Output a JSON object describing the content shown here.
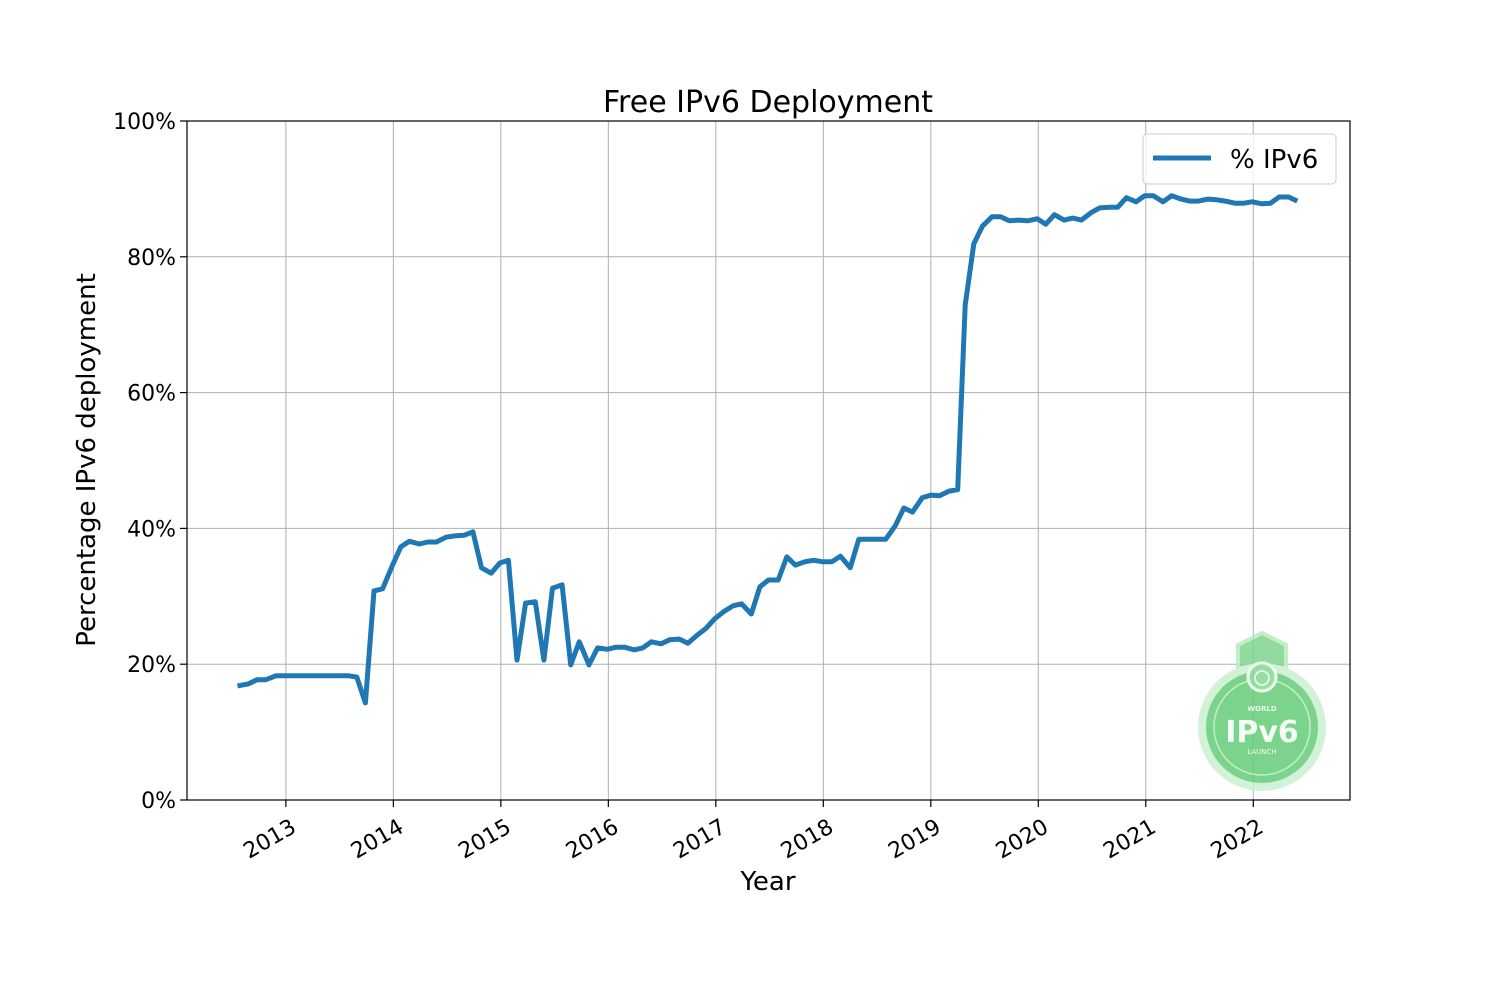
{
  "chart_data": {
    "type": "line",
    "title": "Free IPv6 Deployment",
    "xlabel": "Year",
    "ylabel": "Percentage IPv6 deployment",
    "xlim": [
      2012.08,
      2022.9
    ],
    "ylim": [
      0,
      100
    ],
    "grid": true,
    "legend_position": "top-right",
    "x_ticks": [
      2013,
      2014,
      2015,
      2016,
      2017,
      2018,
      2019,
      2020,
      2021,
      2022
    ],
    "x_tick_labels": [
      "2013",
      "2014",
      "2015",
      "2016",
      "2017",
      "2018",
      "2019",
      "2020",
      "2021",
      "2022"
    ],
    "y_ticks": [
      0,
      20,
      40,
      60,
      80,
      100
    ],
    "y_tick_labels": [
      "0%",
      "20%",
      "40%",
      "60%",
      "80%",
      "100%"
    ],
    "series": [
      {
        "name": "% IPv6",
        "color": "#1f77b4",
        "x": [
          2012.55,
          2012.65,
          2012.73,
          2012.81,
          2012.91,
          2013.0,
          2013.08,
          2013.17,
          2013.25,
          2013.33,
          2013.42,
          2013.5,
          2013.58,
          2013.66,
          2013.74,
          2013.82,
          2013.9,
          2013.99,
          2014.07,
          2014.15,
          2014.24,
          2014.32,
          2014.4,
          2014.49,
          2014.57,
          2014.66,
          2014.74,
          2014.82,
          2014.91,
          2014.99,
          2015.07,
          2015.15,
          2015.23,
          2015.32,
          2015.4,
          2015.48,
          2015.57,
          2015.65,
          2015.73,
          2015.82,
          2015.9,
          2015.99,
          2016.07,
          2016.15,
          2016.24,
          2016.32,
          2016.4,
          2016.49,
          2016.57,
          2016.66,
          2016.74,
          2016.82,
          2016.91,
          2016.99,
          2017.07,
          2017.16,
          2017.24,
          2017.33,
          2017.41,
          2017.49,
          2017.58,
          2017.66,
          2017.74,
          2017.83,
          2017.91,
          2017.99,
          2018.08,
          2018.16,
          2018.25,
          2018.33,
          2018.41,
          2018.5,
          2018.58,
          2018.67,
          2018.75,
          2018.83,
          2018.92,
          2019.0,
          2019.08,
          2019.17,
          2019.25,
          2019.32,
          2019.4,
          2019.48,
          2019.57,
          2019.65,
          2019.73,
          2019.82,
          2019.9,
          2019.99,
          2020.07,
          2020.15,
          2020.24,
          2020.32,
          2020.4,
          2020.49,
          2020.57,
          2020.66,
          2020.74,
          2020.82,
          2020.91,
          2020.99,
          2021.07,
          2021.16,
          2021.24,
          2021.33,
          2021.41,
          2021.49,
          2021.58,
          2021.66,
          2021.74,
          2021.83,
          2021.91,
          2021.99,
          2022.08,
          2022.16,
          2022.24,
          2022.33,
          2022.41
        ],
        "y": [
          16.8,
          17.1,
          17.7,
          17.7,
          18.3,
          18.3,
          18.3,
          18.3,
          18.3,
          18.3,
          18.3,
          18.3,
          18.3,
          18.1,
          14.3,
          30.8,
          31.1,
          34.5,
          37.3,
          38.1,
          37.7,
          38.0,
          38.0,
          38.7,
          38.9,
          39.0,
          39.5,
          34.2,
          33.4,
          34.9,
          35.3,
          20.6,
          29.0,
          29.2,
          20.6,
          31.2,
          31.7,
          19.9,
          23.3,
          19.9,
          22.4,
          22.2,
          22.5,
          22.5,
          22.1,
          22.4,
          23.3,
          23.0,
          23.6,
          23.7,
          23.1,
          24.2,
          25.3,
          26.7,
          27.7,
          28.6,
          28.9,
          27.4,
          31.4,
          32.4,
          32.4,
          35.8,
          34.6,
          35.1,
          35.3,
          35.1,
          35.1,
          35.9,
          34.2,
          38.4,
          38.4,
          38.4,
          38.4,
          40.4,
          43.0,
          42.4,
          44.5,
          44.9,
          44.8,
          45.5,
          45.7,
          72.9,
          81.9,
          84.5,
          85.9,
          85.9,
          85.3,
          85.4,
          85.3,
          85.6,
          84.8,
          86.2,
          85.4,
          85.7,
          85.4,
          86.5,
          87.2,
          87.3,
          87.3,
          88.7,
          88.1,
          89.0,
          89.0,
          88.1,
          89.0,
          88.5,
          88.2,
          88.2,
          88.5,
          88.4,
          88.2,
          87.9,
          87.9,
          88.1,
          87.8,
          87.9,
          88.8,
          88.8,
          88.2
        ]
      }
    ]
  },
  "logo": {
    "top_text": "WORLD",
    "main_text": "IPv6",
    "bottom_text": "LAUNCH"
  }
}
